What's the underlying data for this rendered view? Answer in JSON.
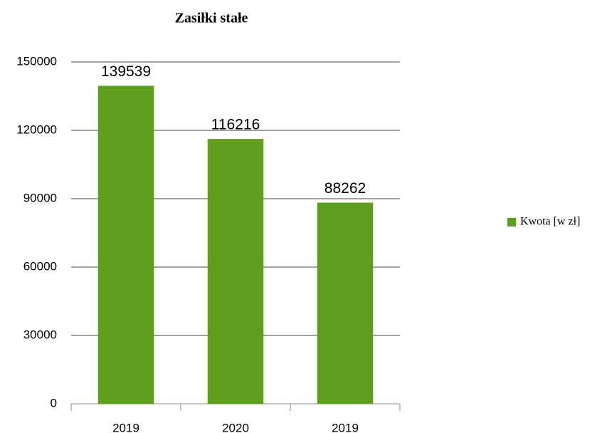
{
  "chart_data": {
    "type": "bar",
    "title": "Zasiłki stałe",
    "categories": [
      "2019",
      "2020",
      "2019"
    ],
    "series": [
      {
        "name": "Kwota [w zł]",
        "color": "#5f9e1e",
        "values": [
          139539,
          116216,
          88262
        ]
      }
    ],
    "ylim": [
      0,
      150000
    ],
    "yticks": [
      0,
      30000,
      60000,
      90000,
      120000,
      150000
    ],
    "grid": true,
    "legend": "right"
  }
}
